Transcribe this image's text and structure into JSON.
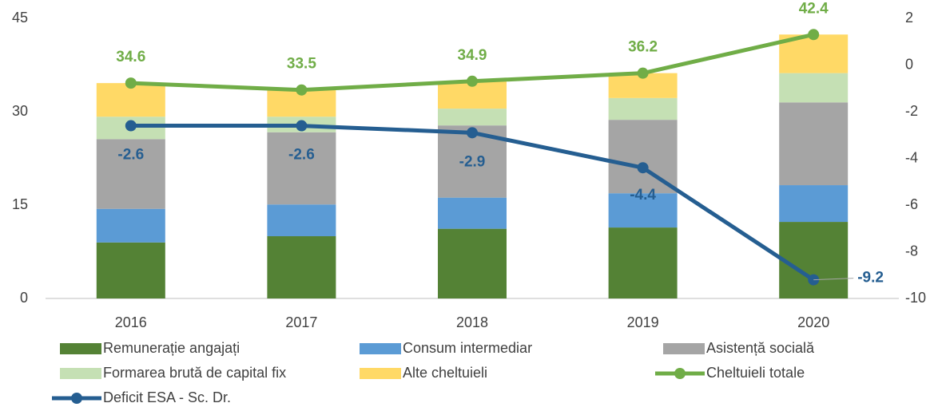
{
  "chart_data": {
    "type": "bar",
    "stacked": true,
    "categories": [
      "2016",
      "2017",
      "2018",
      "2019",
      "2020"
    ],
    "ylim": [
      0,
      45
    ],
    "yticks": [
      0,
      15,
      30,
      45
    ],
    "y2lim": [
      -10,
      2
    ],
    "y2ticks": [
      -10,
      -8,
      -6,
      -4,
      -2,
      0,
      2
    ],
    "legend": "bottom",
    "series": [
      {
        "name": "Remunerație angajați",
        "type": "bar",
        "color": "#548235",
        "values": [
          9.0,
          10.0,
          11.2,
          11.4,
          12.3
        ]
      },
      {
        "name": "Consum intermediar",
        "type": "bar",
        "color": "#5b9bd5",
        "values": [
          5.4,
          5.1,
          5.0,
          5.5,
          5.9
        ]
      },
      {
        "name": "Asistență socială",
        "type": "bar",
        "color": "#a5a5a5",
        "values": [
          11.2,
          11.6,
          11.6,
          11.8,
          13.3
        ]
      },
      {
        "name": "Formarea brută de capital fix",
        "type": "bar",
        "color": "#c5e0b4",
        "values": [
          3.6,
          2.5,
          2.7,
          3.5,
          4.7
        ]
      },
      {
        "name": "Alte cheltuieli",
        "type": "bar",
        "color": "#ffd966",
        "values": [
          5.4,
          4.3,
          4.4,
          4.0,
          6.2
        ]
      },
      {
        "name": "Cheltuieli totale",
        "type": "line",
        "color": "#70ad47",
        "values": [
          34.6,
          33.5,
          34.9,
          36.2,
          42.4
        ]
      },
      {
        "name": "Deficit ESA - Sc. Dr.",
        "type": "line",
        "axis": "y2",
        "color": "#255e91",
        "values": [
          -2.6,
          -2.6,
          -2.9,
          -4.4,
          -9.2
        ]
      }
    ]
  }
}
